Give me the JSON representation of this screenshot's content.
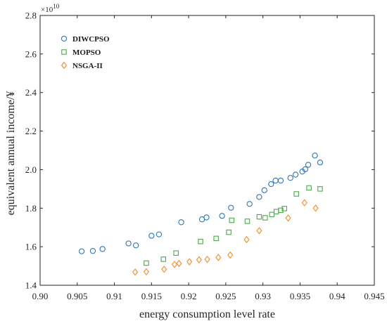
{
  "chart_data": {
    "type": "scatter",
    "xlabel": "energy consumption level rate",
    "ylabel": "equivalent annual income/¥",
    "y_exponent_label": "×10",
    "y_exponent_power": "10",
    "xlim": [
      0.9,
      0.945
    ],
    "ylim": [
      1.4,
      2.8
    ],
    "x_ticks": [
      "0.90",
      "0.905",
      "0.91",
      "0.915",
      "0.92",
      "0.925",
      "0.93",
      "0.935",
      "0.94",
      "0.945"
    ],
    "x_tick_values": [
      0.9,
      0.905,
      0.91,
      0.915,
      0.92,
      0.925,
      0.93,
      0.935,
      0.94,
      0.945
    ],
    "y_ticks": [
      "1.4",
      "1.6",
      "1.8",
      "2.0",
      "2.2",
      "2.4",
      "2.6",
      "2.8"
    ],
    "y_tick_values": [
      1.4,
      1.6,
      1.8,
      2.0,
      2.2,
      2.4,
      2.6,
      2.8
    ],
    "grid": false,
    "legend_position": "top-left",
    "series": [
      {
        "name": "DIWCPSO",
        "marker": "circle",
        "color": "#2e75b6",
        "points": [
          [
            0.9056,
            1.576
          ],
          [
            0.9071,
            1.578
          ],
          [
            0.9084,
            1.588
          ],
          [
            0.9119,
            1.617
          ],
          [
            0.9129,
            1.607
          ],
          [
            0.915,
            1.657
          ],
          [
            0.916,
            1.664
          ],
          [
            0.919,
            1.727
          ],
          [
            0.9218,
            1.742
          ],
          [
            0.9224,
            1.752
          ],
          [
            0.9245,
            1.76
          ],
          [
            0.9257,
            1.802
          ],
          [
            0.9282,
            1.822
          ],
          [
            0.9295,
            1.858
          ],
          [
            0.9302,
            1.893
          ],
          [
            0.9311,
            1.925
          ],
          [
            0.9317,
            1.943
          ],
          [
            0.9324,
            1.943
          ],
          [
            0.9337,
            1.957
          ],
          [
            0.9344,
            1.974
          ],
          [
            0.9353,
            1.99
          ],
          [
            0.9357,
            2.002
          ],
          [
            0.9361,
            2.025
          ],
          [
            0.937,
            2.073
          ],
          [
            0.9377,
            2.037
          ]
        ]
      },
      {
        "name": "MOPSO",
        "marker": "square",
        "color": "#4aa84a",
        "points": [
          [
            0.9143,
            1.515
          ],
          [
            0.9166,
            1.535
          ],
          [
            0.9183,
            1.567
          ],
          [
            0.9216,
            1.627
          ],
          [
            0.9237,
            1.643
          ],
          [
            0.9254,
            1.675
          ],
          [
            0.9258,
            1.737
          ],
          [
            0.9279,
            1.732
          ],
          [
            0.9295,
            1.755
          ],
          [
            0.9303,
            1.75
          ],
          [
            0.9312,
            1.767
          ],
          [
            0.9318,
            1.782
          ],
          [
            0.9324,
            1.789
          ],
          [
            0.9329,
            1.798
          ],
          [
            0.9345,
            1.874
          ],
          [
            0.9362,
            1.905
          ],
          [
            0.9377,
            1.9
          ]
        ]
      },
      {
        "name": "NSGA-II",
        "marker": "diamond",
        "color": "#f28c28",
        "points": [
          [
            0.9128,
            1.468
          ],
          [
            0.9143,
            1.47
          ],
          [
            0.9167,
            1.483
          ],
          [
            0.9181,
            1.508
          ],
          [
            0.9187,
            1.513
          ],
          [
            0.9201,
            1.522
          ],
          [
            0.9214,
            1.532
          ],
          [
            0.9225,
            1.534
          ],
          [
            0.924,
            1.544
          ],
          [
            0.9256,
            1.557
          ],
          [
            0.9278,
            1.637
          ],
          [
            0.9295,
            1.683
          ],
          [
            0.9334,
            1.749
          ],
          [
            0.9356,
            1.828
          ],
          [
            0.9371,
            1.8
          ]
        ]
      }
    ]
  }
}
